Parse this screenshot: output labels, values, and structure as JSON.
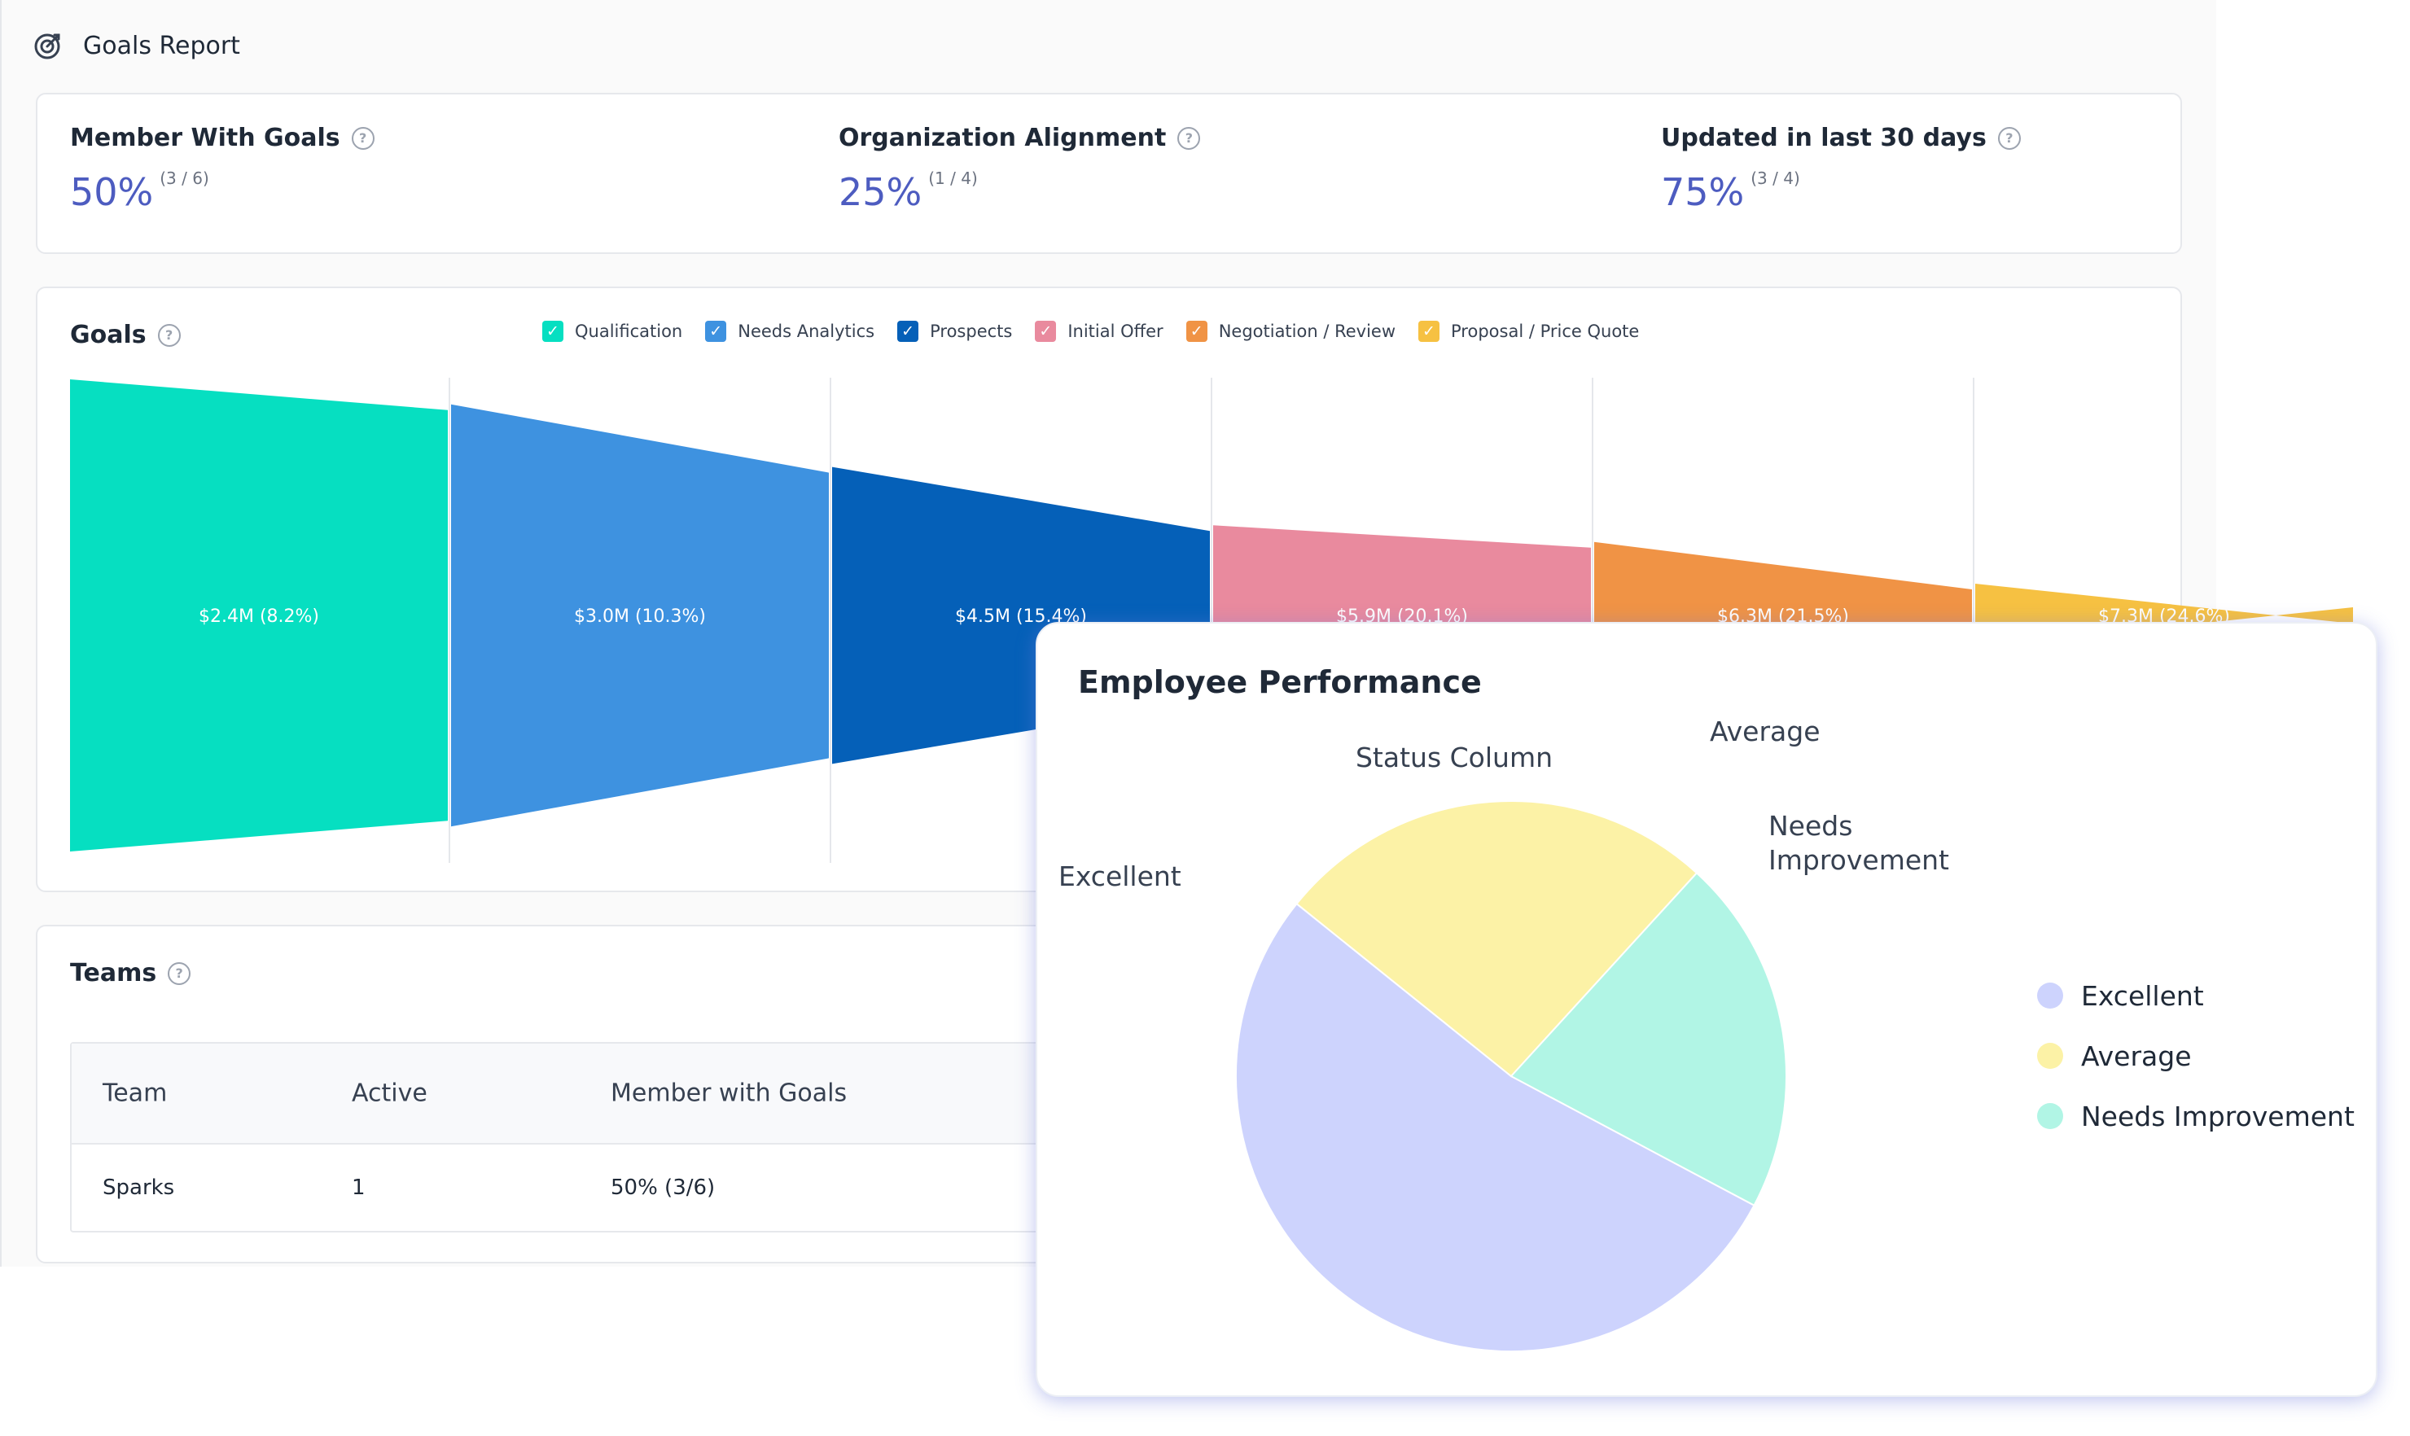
{
  "header": {
    "title": "Goals Report",
    "icon": "target-icon"
  },
  "stats": [
    {
      "label": "Member With Goals",
      "value": "50%",
      "ratio": "(3 / 6)"
    },
    {
      "label": "Organization Alignment",
      "value": "25%",
      "ratio": "(1 / 4)"
    },
    {
      "label": "Updated in last 30 days",
      "value": "75%",
      "ratio": "(3 / 4)"
    }
  ],
  "goals": {
    "title": "Goals",
    "legend": [
      {
        "label": "Qualification",
        "color": "#06dfc1"
      },
      {
        "label": "Needs Analytics",
        "color": "#3e92e0"
      },
      {
        "label": "Prospects",
        "color": "#0560b8"
      },
      {
        "label": "Initial Offer",
        "color": "#e98a9e"
      },
      {
        "label": "Negotiation / Review",
        "color": "#f09345"
      },
      {
        "label": "Proposal / Price Quote",
        "color": "#f6c142"
      }
    ]
  },
  "teams": {
    "title": "Teams",
    "columns": [
      "Team",
      "Active",
      "Member with Goals"
    ],
    "rows": [
      {
        "team": "Sparks",
        "active": "1",
        "member_with_goals": "50% (3/6)"
      }
    ]
  },
  "performance": {
    "title": "Employee Performance",
    "series_label": "Status Column",
    "legend": [
      {
        "label": "Excellent",
        "color": "#cdd3fd"
      },
      {
        "label": "Average",
        "color": "#fcf2a6"
      },
      {
        "label": "Needs Improvement",
        "color": "#b1f5e5"
      }
    ]
  },
  "chart_data": [
    {
      "type": "funnel",
      "title": "Goals",
      "categories": [
        "Qualification",
        "Needs Analytics",
        "Prospects",
        "Initial Offer",
        "Negotiation / Review",
        "Proposal / Price Quote"
      ],
      "values": [
        2.4,
        3.0,
        4.5,
        5.9,
        6.3,
        7.3
      ],
      "percentages": [
        8.2,
        10.3,
        15.4,
        20.1,
        21.5,
        24.6
      ],
      "labels": [
        "$2.4M (8.2%)",
        "$3.0M (10.3%)",
        "$4.5M (15.4%)",
        "$5.9M (20.1%)",
        "$6.3M (21.5%)",
        "$7.3M (24.6%)"
      ],
      "unit": "$M"
    },
    {
      "type": "pie",
      "title": "Employee Performance",
      "series_name": "Status Column",
      "categories": [
        "Excellent",
        "Average",
        "Needs Improvement"
      ],
      "values": [
        53,
        26,
        21
      ],
      "labels": [
        "Excellent",
        "Average",
        "Needs\nImprovement"
      ]
    }
  ]
}
